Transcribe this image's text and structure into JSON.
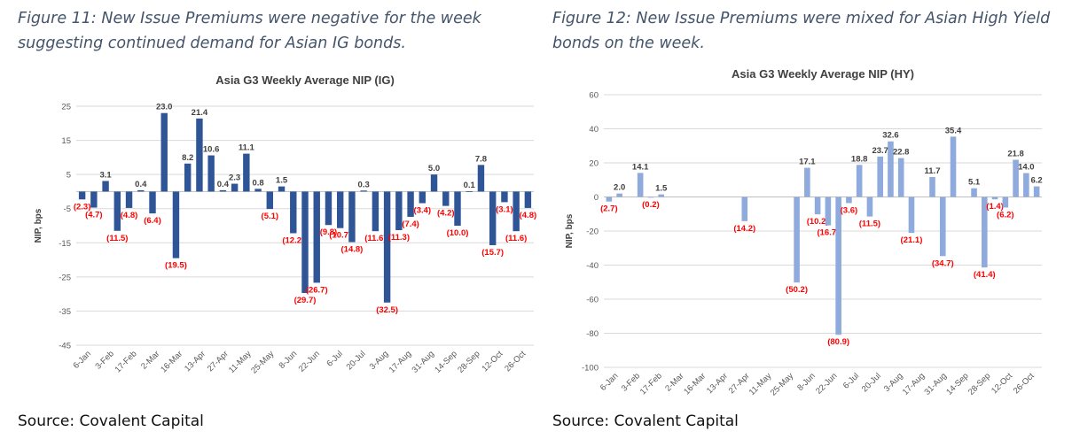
{
  "figures": [
    {
      "caption": "Figure 11: New Issue Premiums were negative for the week suggesting continued demand for Asian IG bonds.",
      "caption_lines": [
        "Figure 11: New Issue Premiums were negative for the week",
        "suggesting continued demand for Asian IG bonds."
      ],
      "source": "Source: Covalent Capital"
    },
    {
      "caption": "Figure 12: New Issue Premiums were mixed for Asian High Yield bonds on the week.",
      "caption_lines": [
        "Figure 12: New Issue Premiums were mixed for Asian High Yield",
        "bonds on the week."
      ],
      "source": "Source: Covalent Capital"
    }
  ],
  "colors": {
    "ig_bar": "#2f5597",
    "hy_bar": "#8faadc",
    "negative_label": "#ff0000",
    "positive_label": "#404040",
    "caption": "#44546a"
  },
  "chart_data": [
    {
      "type": "bar",
      "title": "Asia G3 Weekly Average NIP (IG)",
      "ylabel": "NIP, bps",
      "xlabel": "",
      "ylim": [
        -45,
        25
      ],
      "yticks": [
        25,
        15,
        5,
        -5,
        -15,
        -25,
        -35,
        -45
      ],
      "grid": true,
      "x_tick_labels": [
        "6-Jan",
        "3-Feb",
        "17-Feb",
        "2-Mar",
        "16-Mar",
        "13-Apr",
        "27-Apr",
        "11-May",
        "25-May",
        "8-Jun",
        "22-Jun",
        "6-Jul",
        "20-Jul",
        "3-Aug",
        "17-Aug",
        "31-Aug",
        "14-Sep",
        "28-Sep",
        "12-Oct",
        "26-Oct"
      ],
      "values": [
        -2.3,
        -4.7,
        3.1,
        -11.5,
        -4.8,
        0.4,
        -6.4,
        23.0,
        -19.5,
        8.2,
        21.4,
        10.6,
        0.4,
        2.3,
        11.1,
        0.8,
        -5.1,
        1.5,
        -12.2,
        -29.7,
        -26.7,
        -9.8,
        -10.7,
        -14.8,
        0.3,
        -11.6,
        -32.5,
        -11.3,
        -7.4,
        -3.4,
        5.0,
        -4.2,
        -10.0,
        0.1,
        7.8,
        -15.7,
        -3.1,
        -11.6,
        -4.8
      ],
      "data_labels": [
        "(2.3)",
        "(4.7)",
        "3.1",
        "(11.5)",
        "(4.8)",
        "0.4",
        "(6.4)",
        "23.0",
        "(19.5)",
        "8.2",
        "21.4",
        "10.6",
        "0.4",
        "2.3",
        "11.1",
        "0.8",
        "(5.1)",
        "1.5",
        "(12.2)",
        "(29.7)",
        "(26.7)",
        "(9.8)",
        "(10.7)",
        "(14.8)",
        "0.3",
        "(11.6)",
        "(32.5)",
        "(11.3)",
        "(7.4)",
        "(3.4)",
        "5.0",
        "(4.2)",
        "(10.0)",
        "0.1",
        "7.8",
        "(15.7)",
        "(3.1)",
        "(11.6)",
        "(4.8)"
      ]
    },
    {
      "type": "bar",
      "title": "Asia G3 Weekly Average NIP (HY)",
      "ylabel": "NIP, bps",
      "xlabel": "",
      "ylim": [
        -100,
        60
      ],
      "yticks": [
        60,
        40,
        20,
        0,
        -20,
        -40,
        -60,
        -80,
        -100
      ],
      "grid": true,
      "x_tick_labels": [
        "6-Jan",
        "3-Feb",
        "17-Feb",
        "2-Mar",
        "16-Mar",
        "13-Apr",
        "27-Apr",
        "11-May",
        "25-May",
        "8-Jun",
        "22-Jun",
        "6-Jul",
        "20-Jul",
        "3-Aug",
        "17-Aug",
        "31-Aug",
        "14-Sep",
        "28-Sep",
        "12-Oct",
        "26-Oct"
      ],
      "values": [
        -2.7,
        2.0,
        null,
        14.1,
        -0.2,
        1.5,
        null,
        null,
        null,
        null,
        null,
        null,
        null,
        -14.2,
        null,
        null,
        null,
        null,
        -50.2,
        17.1,
        -10.2,
        -16.7,
        -80.9,
        -3.6,
        18.8,
        -11.5,
        23.7,
        32.6,
        22.8,
        -21.1,
        null,
        11.7,
        -34.7,
        35.4,
        null,
        5.1,
        -41.4,
        -1.4,
        -6.2,
        21.8,
        14.0,
        6.2
      ],
      "data_labels": [
        "(2.7)",
        "2.0",
        null,
        "14.1",
        "(0.2)",
        "1.5",
        null,
        null,
        null,
        null,
        null,
        null,
        null,
        "(14.2)",
        null,
        null,
        null,
        null,
        "(50.2)",
        "17.1",
        "(10.2)",
        "(16.7)",
        "(80.9)",
        "(3.6)",
        "18.8",
        "(11.5)",
        "23.7",
        "32.6",
        "22.8",
        "(21.1)",
        null,
        "11.7",
        "(34.7)",
        "35.4",
        null,
        "5.1",
        "(41.4)",
        "(1.4)",
        "(6.2)",
        "21.8",
        "14.0",
        "6.2"
      ]
    }
  ]
}
